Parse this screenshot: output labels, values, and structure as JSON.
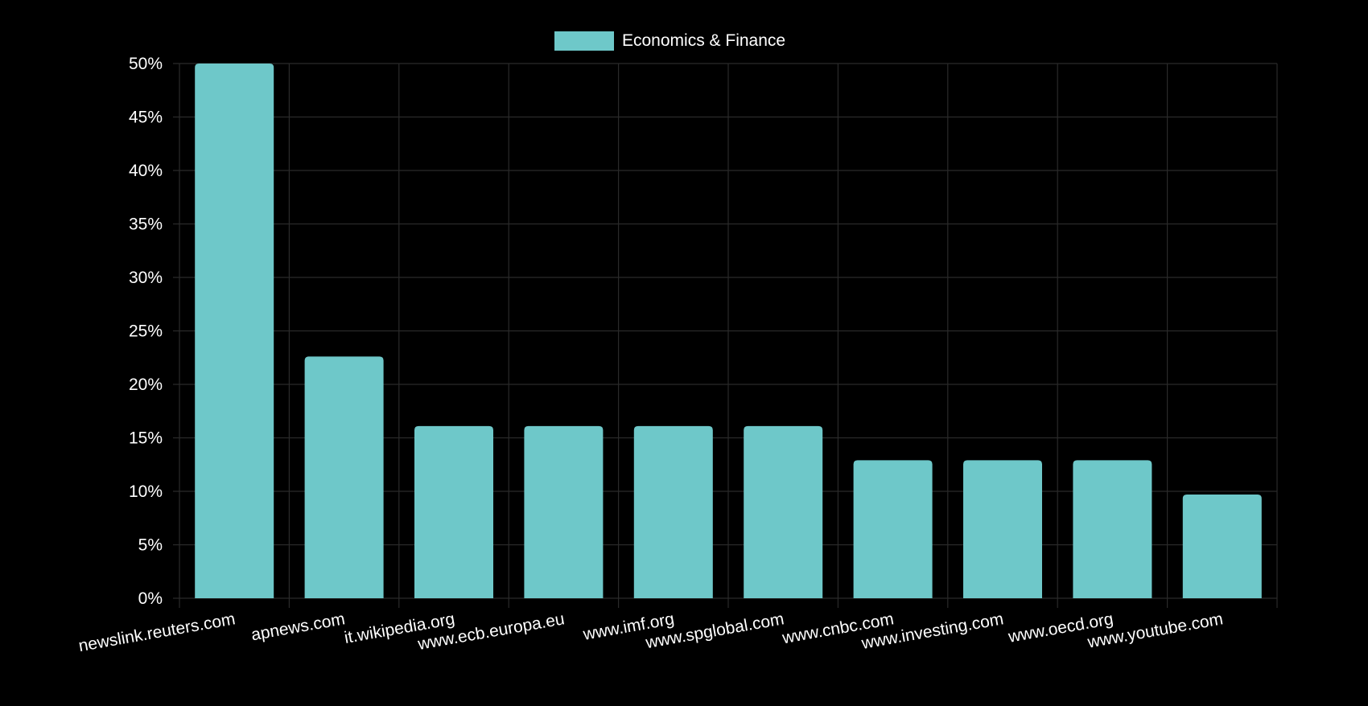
{
  "chart_data": {
    "type": "bar",
    "categories": [
      "newslink.reuters.com",
      "apnews.com",
      "it.wikipedia.org",
      "www.ecb.europa.eu",
      "www.imf.org",
      "www.spglobal.com",
      "www.cnbc.com",
      "www.investing.com",
      "www.oecd.org",
      "www.youtube.com"
    ],
    "series": [
      {
        "name": "Economics & Finance",
        "values": [
          50,
          22.6,
          16.1,
          16.1,
          16.1,
          16.1,
          12.9,
          12.9,
          12.9,
          9.7
        ]
      }
    ],
    "y_ticks": [
      "0%",
      "5%",
      "10%",
      "15%",
      "20%",
      "25%",
      "30%",
      "35%",
      "40%",
      "45%",
      "50%"
    ],
    "ylim": [
      0,
      50
    ],
    "y_unit": "%",
    "grid": true,
    "legend_position": "top-center",
    "colors": {
      "bar": "#6ec8c9",
      "grid": "#2a2a2a",
      "text": "#ffffff",
      "background": "#000000"
    }
  }
}
